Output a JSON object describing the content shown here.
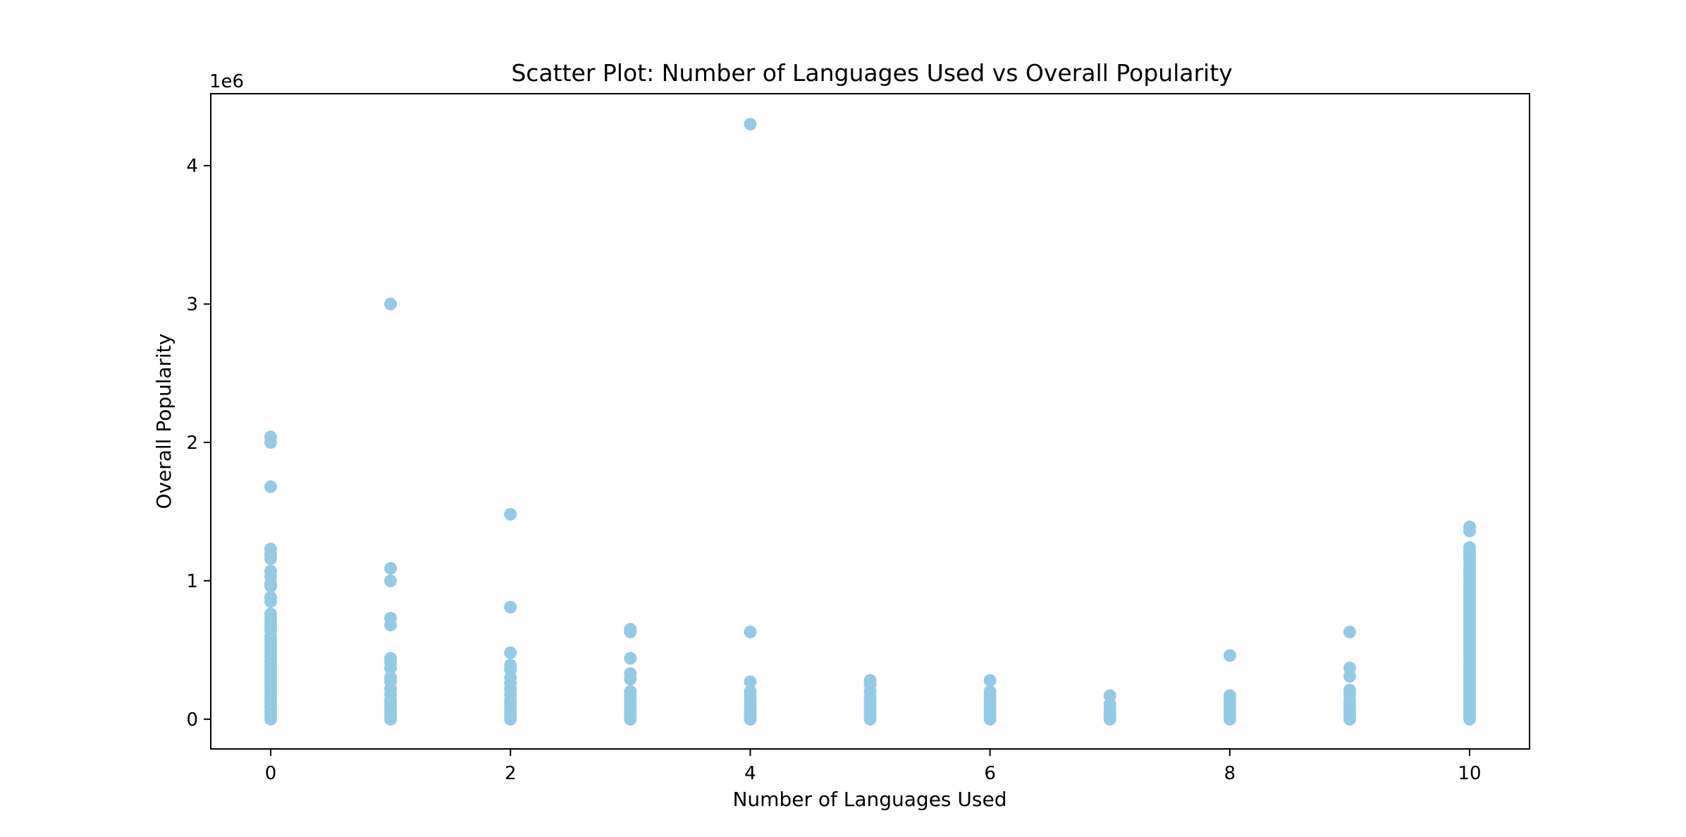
{
  "chart_data": {
    "type": "scatter",
    "title": "Scatter Plot: Number of Languages Used vs Overall Popularity",
    "xlabel": "Number of Languages Used",
    "ylabel": "Overall Popularity",
    "y_offset_label": "1e6",
    "xlim": [
      -0.5,
      10.5
    ],
    "ylim": [
      -0.215,
      4.52
    ],
    "x_ticks": [
      0,
      2,
      4,
      6,
      8,
      10
    ],
    "x_tick_labels": [
      "0",
      "2",
      "4",
      "6",
      "8",
      "10"
    ],
    "y_ticks": [
      0,
      1,
      2,
      3,
      4
    ],
    "y_tick_labels": [
      "0",
      "1",
      "2",
      "3",
      "4"
    ],
    "grid": false,
    "point_color": "#95cae6",
    "series": [
      {
        "name": "Overall Popularity",
        "points": [
          [
            0,
            2.04
          ],
          [
            0,
            2.0
          ],
          [
            0,
            1.68
          ],
          [
            0,
            1.23
          ],
          [
            0,
            1.19
          ],
          [
            0,
            1.16
          ],
          [
            0,
            1.07
          ],
          [
            0,
            1.03
          ],
          [
            0,
            0.98
          ],
          [
            0,
            0.96
          ],
          [
            0,
            0.88
          ],
          [
            0,
            0.85
          ],
          [
            0,
            0.76
          ],
          [
            0,
            0.73
          ],
          [
            0,
            0.7
          ],
          [
            0,
            0.67
          ],
          [
            0,
            0.64
          ],
          [
            0,
            0.6
          ],
          [
            0,
            0.57
          ],
          [
            0,
            0.54
          ],
          [
            0,
            0.51
          ],
          [
            0,
            0.48
          ],
          [
            0,
            0.45
          ],
          [
            0,
            0.42
          ],
          [
            0,
            0.39
          ],
          [
            0,
            0.36
          ],
          [
            0,
            0.33
          ],
          [
            0,
            0.3
          ],
          [
            0,
            0.27
          ],
          [
            0,
            0.24
          ],
          [
            0,
            0.21
          ],
          [
            0,
            0.18
          ],
          [
            0,
            0.15
          ],
          [
            0,
            0.12
          ],
          [
            0,
            0.09
          ],
          [
            0,
            0.06
          ],
          [
            0,
            0.03
          ],
          [
            0,
            0.0
          ],
          [
            1,
            3.0
          ],
          [
            1,
            1.09
          ],
          [
            1,
            1.0
          ],
          [
            1,
            0.73
          ],
          [
            1,
            0.68
          ],
          [
            1,
            0.44
          ],
          [
            1,
            0.41
          ],
          [
            1,
            0.37
          ],
          [
            1,
            0.3
          ],
          [
            1,
            0.27
          ],
          [
            1,
            0.22
          ],
          [
            1,
            0.18
          ],
          [
            1,
            0.14
          ],
          [
            1,
            0.11
          ],
          [
            1,
            0.08
          ],
          [
            1,
            0.05
          ],
          [
            1,
            0.02
          ],
          [
            1,
            0.0
          ],
          [
            2,
            1.48
          ],
          [
            2,
            0.81
          ],
          [
            2,
            0.48
          ],
          [
            2,
            0.39
          ],
          [
            2,
            0.36
          ],
          [
            2,
            0.3
          ],
          [
            2,
            0.26
          ],
          [
            2,
            0.22
          ],
          [
            2,
            0.18
          ],
          [
            2,
            0.14
          ],
          [
            2,
            0.11
          ],
          [
            2,
            0.08
          ],
          [
            2,
            0.05
          ],
          [
            2,
            0.02
          ],
          [
            2,
            0.0
          ],
          [
            3,
            0.65
          ],
          [
            3,
            0.63
          ],
          [
            3,
            0.44
          ],
          [
            3,
            0.33
          ],
          [
            3,
            0.29
          ],
          [
            3,
            0.2
          ],
          [
            3,
            0.17
          ],
          [
            3,
            0.14
          ],
          [
            3,
            0.11
          ],
          [
            3,
            0.08
          ],
          [
            3,
            0.05
          ],
          [
            3,
            0.02
          ],
          [
            3,
            0.0
          ],
          [
            4,
            4.3
          ],
          [
            4,
            0.63
          ],
          [
            4,
            0.27
          ],
          [
            4,
            0.2
          ],
          [
            4,
            0.17
          ],
          [
            4,
            0.14
          ],
          [
            4,
            0.11
          ],
          [
            4,
            0.08
          ],
          [
            4,
            0.05
          ],
          [
            4,
            0.02
          ],
          [
            4,
            0.0
          ],
          [
            5,
            0.28
          ],
          [
            5,
            0.25
          ],
          [
            5,
            0.2
          ],
          [
            5,
            0.16
          ],
          [
            5,
            0.13
          ],
          [
            5,
            0.1
          ],
          [
            5,
            0.07
          ],
          [
            5,
            0.04
          ],
          [
            5,
            0.01
          ],
          [
            5,
            0.0
          ],
          [
            6,
            0.28
          ],
          [
            6,
            0.2
          ],
          [
            6,
            0.17
          ],
          [
            6,
            0.14
          ],
          [
            6,
            0.11
          ],
          [
            6,
            0.08
          ],
          [
            6,
            0.05
          ],
          [
            6,
            0.02
          ],
          [
            6,
            0.0
          ],
          [
            7,
            0.17
          ],
          [
            7,
            0.11
          ],
          [
            7,
            0.08
          ],
          [
            7,
            0.05
          ],
          [
            7,
            0.03
          ],
          [
            7,
            0.01
          ],
          [
            7,
            0.0
          ],
          [
            8,
            0.46
          ],
          [
            8,
            0.17
          ],
          [
            8,
            0.14
          ],
          [
            8,
            0.11
          ],
          [
            8,
            0.08
          ],
          [
            8,
            0.05
          ],
          [
            8,
            0.02
          ],
          [
            8,
            0.0
          ],
          [
            9,
            0.63
          ],
          [
            9,
            0.37
          ],
          [
            9,
            0.31
          ],
          [
            9,
            0.21
          ],
          [
            9,
            0.18
          ],
          [
            9,
            0.14
          ],
          [
            9,
            0.11
          ],
          [
            9,
            0.08
          ],
          [
            9,
            0.05
          ],
          [
            9,
            0.02
          ],
          [
            9,
            0.0
          ],
          [
            10,
            1.39
          ],
          [
            10,
            1.36
          ],
          [
            10,
            1.24
          ],
          [
            10,
            1.21
          ],
          [
            10,
            1.18
          ],
          [
            10,
            1.15
          ],
          [
            10,
            1.12
          ],
          [
            10,
            1.09
          ],
          [
            10,
            1.06
          ],
          [
            10,
            1.03
          ],
          [
            10,
            1.0
          ],
          [
            10,
            0.97
          ],
          [
            10,
            0.94
          ],
          [
            10,
            0.91
          ],
          [
            10,
            0.88
          ],
          [
            10,
            0.85
          ],
          [
            10,
            0.82
          ],
          [
            10,
            0.79
          ],
          [
            10,
            0.76
          ],
          [
            10,
            0.73
          ],
          [
            10,
            0.7
          ],
          [
            10,
            0.67
          ],
          [
            10,
            0.64
          ],
          [
            10,
            0.61
          ],
          [
            10,
            0.58
          ],
          [
            10,
            0.55
          ],
          [
            10,
            0.52
          ],
          [
            10,
            0.49
          ],
          [
            10,
            0.46
          ],
          [
            10,
            0.43
          ],
          [
            10,
            0.4
          ],
          [
            10,
            0.37
          ],
          [
            10,
            0.34
          ],
          [
            10,
            0.31
          ],
          [
            10,
            0.28
          ],
          [
            10,
            0.25
          ],
          [
            10,
            0.22
          ],
          [
            10,
            0.19
          ],
          [
            10,
            0.16
          ],
          [
            10,
            0.13
          ],
          [
            10,
            0.1
          ],
          [
            10,
            0.07
          ],
          [
            10,
            0.04
          ],
          [
            10,
            0.01
          ],
          [
            10,
            0.0
          ]
        ]
      }
    ]
  }
}
